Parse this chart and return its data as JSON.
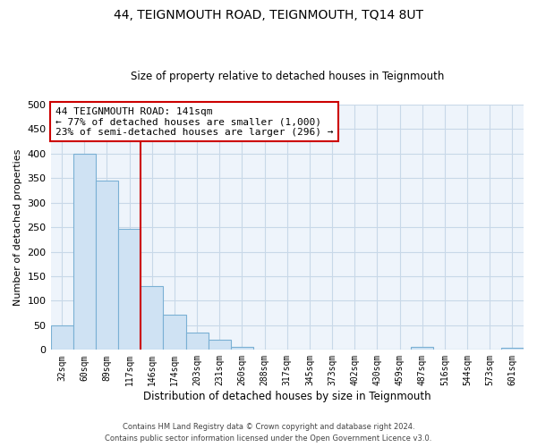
{
  "title": "44, TEIGNMOUTH ROAD, TEIGNMOUTH, TQ14 8UT",
  "subtitle": "Size of property relative to detached houses in Teignmouth",
  "xlabel": "Distribution of detached houses by size in Teignmouth",
  "ylabel": "Number of detached properties",
  "bar_labels": [
    "32sqm",
    "60sqm",
    "89sqm",
    "117sqm",
    "146sqm",
    "174sqm",
    "203sqm",
    "231sqm",
    "260sqm",
    "288sqm",
    "317sqm",
    "345sqm",
    "373sqm",
    "402sqm",
    "430sqm",
    "459sqm",
    "487sqm",
    "516sqm",
    "544sqm",
    "573sqm",
    "601sqm"
  ],
  "bar_values": [
    50,
    400,
    344,
    247,
    130,
    71,
    35,
    20,
    6,
    0,
    0,
    0,
    0,
    0,
    0,
    0,
    6,
    0,
    0,
    0,
    4
  ],
  "bar_color": "#cfe2f3",
  "bar_edge_color": "#7ab0d4",
  "vline_x_index": 3.5,
  "vline_color": "#cc0000",
  "annotation_title": "44 TEIGNMOUTH ROAD: 141sqm",
  "annotation_line1": "← 77% of detached houses are smaller (1,000)",
  "annotation_line2": "23% of semi-detached houses are larger (296) →",
  "annotation_box_color": "#ffffff",
  "annotation_box_edge_color": "#cc0000",
  "ylim": [
    0,
    500
  ],
  "yticks": [
    0,
    50,
    100,
    150,
    200,
    250,
    300,
    350,
    400,
    450,
    500
  ],
  "footnote1": "Contains HM Land Registry data © Crown copyright and database right 2024.",
  "footnote2": "Contains public sector information licensed under the Open Government Licence v3.0.",
  "background_color": "#ffffff",
  "plot_bg_color": "#eef4fb",
  "grid_color": "#c8d8e8"
}
